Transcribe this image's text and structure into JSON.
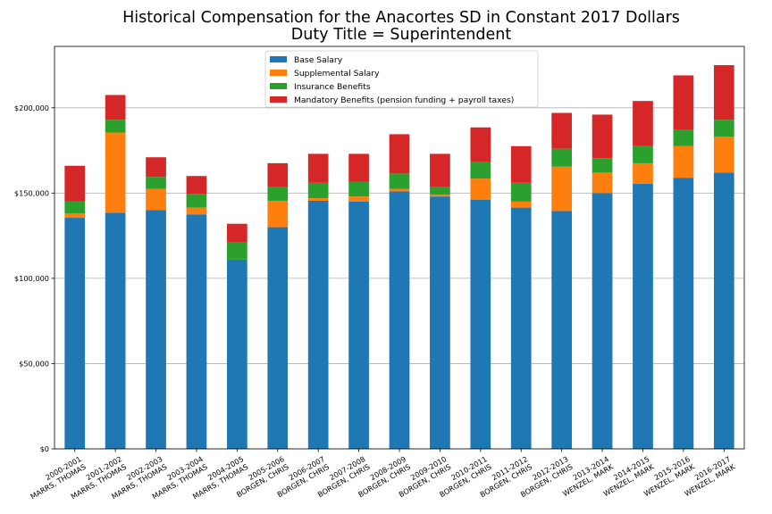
{
  "chart_data": {
    "type": "bar",
    "stacked": true,
    "title": [
      "Historical Compensation for the Anacortes SD in Constant 2017 Dollars",
      "Duty Title = Superintendent"
    ],
    "xlabel": "",
    "ylabel": "",
    "ylim": [
      0,
      236000
    ],
    "yticks": [
      0,
      50000,
      100000,
      150000,
      200000
    ],
    "ytick_labels": [
      "$0",
      "$50,000",
      "$100,000",
      "$150,000",
      "$200,000"
    ],
    "grid": "horizontal",
    "legend_position": "top-center",
    "categories": [
      [
        "2000-2001",
        "MARRS, THOMAS"
      ],
      [
        "2001-2002",
        "MARRS, THOMAS"
      ],
      [
        "2002-2003",
        "MARRS, THOMAS"
      ],
      [
        "2003-2004",
        "MARRS, THOMAS"
      ],
      [
        "2004-2005",
        "MARRS, THOMAS"
      ],
      [
        "2005-2006",
        "BORGEN, CHRIS"
      ],
      [
        "2006-2007",
        "BORGEN, CHRIS"
      ],
      [
        "2007-2008",
        "BORGEN, CHRIS"
      ],
      [
        "2008-2009",
        "BORGEN, CHRIS"
      ],
      [
        "2009-2010",
        "BORGEN, CHRIS"
      ],
      [
        "2010-2011",
        "BORGEN, CHRIS"
      ],
      [
        "2011-2012",
        "BORGEN, CHRIS"
      ],
      [
        "2012-2013",
        "BORGEN, CHRIS"
      ],
      [
        "2013-2014",
        "WENZEL, MARK"
      ],
      [
        "2014-2015",
        "WENZEL, MARK"
      ],
      [
        "2015-2016",
        "WENZEL, MARK"
      ],
      [
        "2016-2017",
        "WENZEL, MARK"
      ]
    ],
    "series": [
      {
        "name": "Base Salary",
        "color": "#1f77b4",
        "values": [
          135500,
          138500,
          140000,
          137500,
          111000,
          130000,
          145500,
          145000,
          151000,
          148000,
          146000,
          141500,
          139500,
          150000,
          155500,
          159000,
          162000
        ]
      },
      {
        "name": "Supplemental Salary",
        "color": "#ff7f0e",
        "values": [
          2500,
          47000,
          12500,
          4000,
          0,
          15500,
          1500,
          3000,
          1500,
          1000,
          12500,
          3500,
          26000,
          12000,
          12000,
          18500,
          21000
        ]
      },
      {
        "name": "Insurance Benefits",
        "color": "#2ca02c",
        "values": [
          7000,
          7500,
          7000,
          8000,
          10000,
          8000,
          9000,
          8500,
          9000,
          4500,
          10000,
          11000,
          10500,
          8500,
          10000,
          9500,
          10000
        ]
      },
      {
        "name": "Mandatory Benefits (pension funding + payroll taxes)",
        "color": "#d62728",
        "values": [
          21000,
          14500,
          11500,
          10500,
          11000,
          14000,
          17000,
          16500,
          23000,
          19500,
          20000,
          21500,
          21000,
          25500,
          26500,
          32000,
          32000
        ]
      }
    ]
  }
}
